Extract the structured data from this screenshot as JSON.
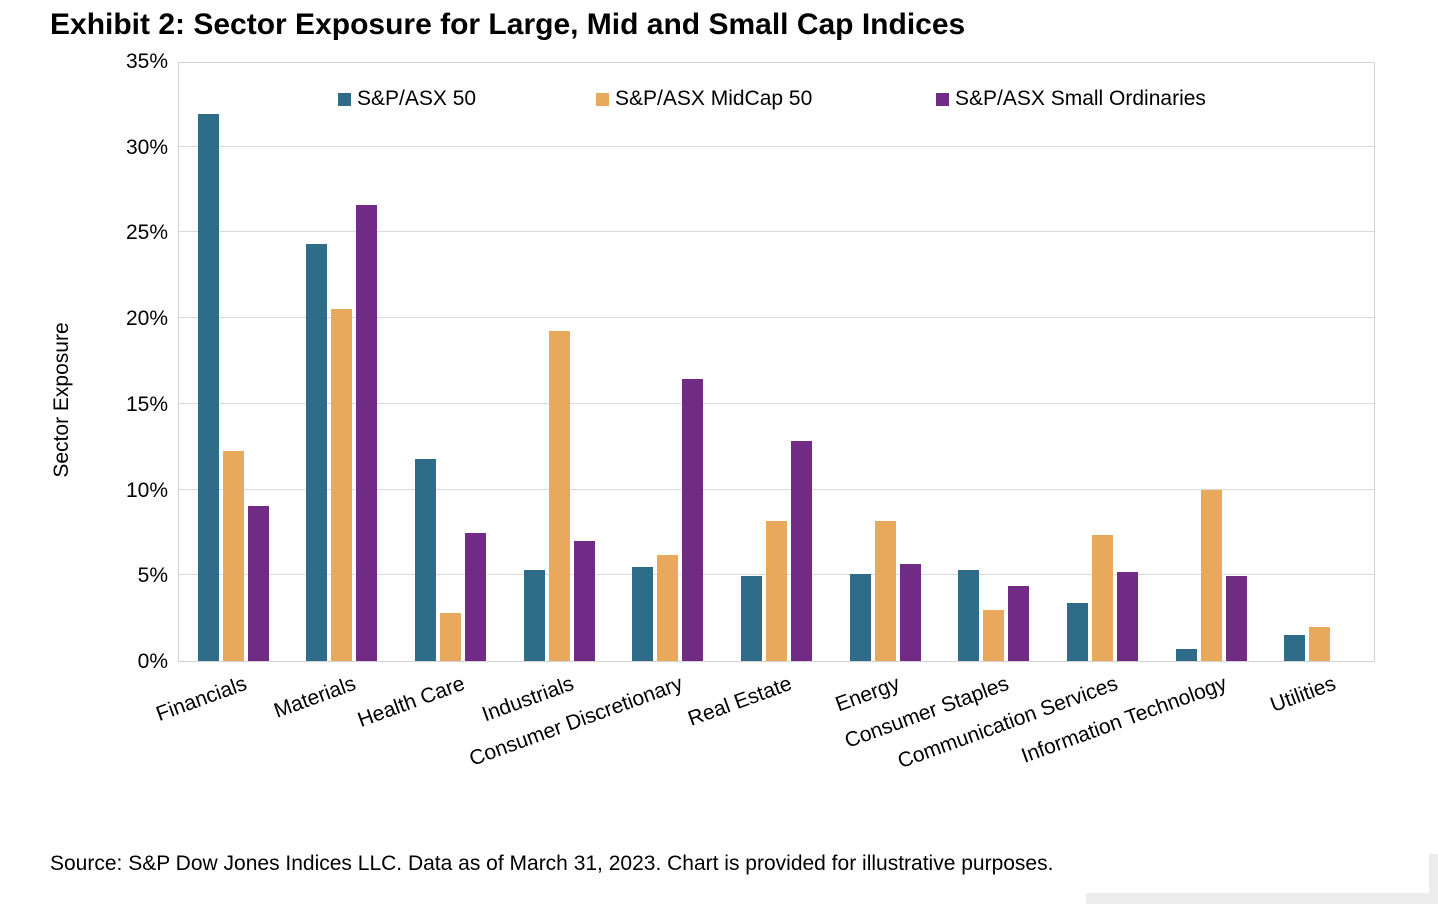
{
  "page": {
    "title": "Exhibit 2: Sector Exposure for Large, Mid and Small Cap Indices",
    "source": "Source: S&P Dow Jones Indices LLC. Data as of March 31, 2023. Chart is provided for illustrative purposes."
  },
  "chart_data": {
    "type": "bar",
    "title": "Exhibit 2: Sector Exposure for Large, Mid and Small Cap Indices",
    "xlabel": "",
    "ylabel": "Sector Exposure",
    "ylim": [
      0,
      35
    ],
    "ytick_step": 5,
    "ytick_labels": [
      "0%",
      "5%",
      "10%",
      "15%",
      "20%",
      "25%",
      "30%",
      "35%"
    ],
    "grid": true,
    "legend_position": "top-inside",
    "categories": [
      "Financials",
      "Materials",
      "Health Care",
      "Industrials",
      "Consumer Discretionary",
      "Real Estate",
      "Energy",
      "Consumer Staples",
      "Communication Services",
      "Information Technology",
      "Utilities"
    ],
    "series": [
      {
        "name": "S&P/ASX 50",
        "color": "#2E6C8A",
        "values": [
          32.0,
          24.4,
          11.8,
          5.3,
          5.5,
          5.0,
          5.1,
          5.3,
          3.4,
          0.7,
          1.5
        ]
      },
      {
        "name": "S&P/ASX MidCap 50",
        "color": "#E8A95C",
        "values": [
          12.3,
          20.6,
          2.8,
          19.3,
          6.2,
          8.2,
          8.2,
          3.0,
          7.4,
          10.0,
          2.0
        ]
      },
      {
        "name": "S&P/ASX Small Ordinaries",
        "color": "#722B85",
        "values": [
          9.1,
          26.7,
          7.5,
          7.0,
          16.5,
          12.9,
          5.7,
          4.4,
          5.2,
          5.0,
          0
        ]
      }
    ],
    "colors": {
      "gridline": "#d9d9d9",
      "plot_border": "#d2d2d2"
    }
  }
}
